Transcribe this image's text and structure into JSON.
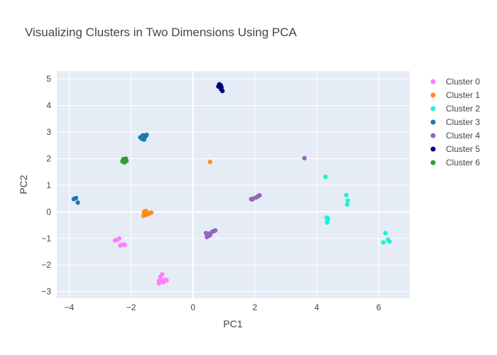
{
  "chart_data": {
    "type": "scatter",
    "title": "Visualizing Clusters in Two Dimensions Using PCA",
    "xlabel": "PC1",
    "ylabel": "PC2",
    "xlim": [
      -4.4,
      7.0
    ],
    "ylim": [
      -3.25,
      5.3
    ],
    "xticks": [
      -4,
      -2,
      0,
      2,
      4,
      6
    ],
    "yticks": [
      -3,
      -2,
      -1,
      0,
      1,
      2,
      3,
      4,
      5
    ],
    "grid": true,
    "legend_position": "right",
    "series": [
      {
        "name": "Cluster 0",
        "color": "#ff7fff",
        "points": [
          [
            -2.45,
            -1.05
          ],
          [
            -2.38,
            -1.0
          ],
          [
            -2.52,
            -1.08
          ],
          [
            -2.35,
            -1.27
          ],
          [
            -2.25,
            -1.22
          ],
          [
            -2.2,
            -1.25
          ],
          [
            -2.3,
            -1.24
          ],
          [
            -1.1,
            -2.6
          ],
          [
            -1.0,
            -2.35
          ],
          [
            -1.05,
            -2.45
          ],
          [
            -0.9,
            -2.55
          ],
          [
            -1.0,
            -2.62
          ],
          [
            -1.1,
            -2.7
          ],
          [
            -0.85,
            -2.58
          ],
          [
            -0.95,
            -2.65
          ],
          [
            -1.05,
            -2.62
          ]
        ]
      },
      {
        "name": "Cluster 1",
        "color": "#ff8c1a",
        "points": [
          [
            0.55,
            1.88
          ],
          [
            -1.58,
            0.0
          ],
          [
            -1.5,
            -0.02
          ],
          [
            -1.45,
            -0.08
          ],
          [
            -1.55,
            -0.12
          ],
          [
            -1.6,
            -0.15
          ],
          [
            -1.4,
            -0.05
          ],
          [
            -1.35,
            -0.03
          ],
          [
            -1.52,
            0.03
          ],
          [
            -1.48,
            -0.1
          ],
          [
            -1.57,
            -0.06
          ]
        ]
      },
      {
        "name": "Cluster 2",
        "color": "#1ff2d2",
        "points": [
          [
            4.28,
            1.32
          ],
          [
            4.95,
            0.63
          ],
          [
            5.0,
            0.42
          ],
          [
            4.98,
            0.28
          ],
          [
            4.32,
            -0.22
          ],
          [
            4.35,
            -0.3
          ],
          [
            4.33,
            -0.4
          ],
          [
            4.36,
            -0.25
          ],
          [
            6.22,
            -0.8
          ],
          [
            6.3,
            -1.05
          ],
          [
            6.35,
            -1.12
          ],
          [
            6.15,
            -1.15
          ]
        ]
      },
      {
        "name": "Cluster 3",
        "color": "#1f77b4",
        "points": [
          [
            -3.85,
            0.48
          ],
          [
            -3.78,
            0.52
          ],
          [
            -3.72,
            0.35
          ],
          [
            -1.7,
            2.8
          ],
          [
            -1.6,
            2.85
          ],
          [
            -1.5,
            2.9
          ],
          [
            -1.55,
            2.82
          ],
          [
            -1.65,
            2.75
          ],
          [
            -1.58,
            2.72
          ],
          [
            -1.62,
            2.88
          ],
          [
            -1.52,
            2.86
          ]
        ]
      },
      {
        "name": "Cluster 4",
        "color": "#9467bd",
        "points": [
          [
            3.6,
            2.02
          ],
          [
            1.88,
            0.48
          ],
          [
            1.95,
            0.5
          ],
          [
            2.05,
            0.55
          ],
          [
            2.12,
            0.6
          ],
          [
            2.15,
            0.62
          ],
          [
            1.92,
            0.47
          ],
          [
            2.08,
            0.57
          ],
          [
            0.42,
            -0.8
          ],
          [
            0.5,
            -0.82
          ],
          [
            0.55,
            -0.88
          ],
          [
            0.45,
            -0.95
          ],
          [
            0.62,
            -0.75
          ],
          [
            0.72,
            -0.7
          ],
          [
            0.48,
            -0.85
          ],
          [
            0.52,
            -0.9
          ],
          [
            0.68,
            -0.72
          ]
        ]
      },
      {
        "name": "Cluster 5",
        "color": "#00007f",
        "points": [
          [
            0.82,
            4.72
          ],
          [
            0.88,
            4.78
          ],
          [
            0.92,
            4.68
          ],
          [
            0.95,
            4.55
          ],
          [
            0.9,
            4.62
          ],
          [
            0.85,
            4.8
          ],
          [
            0.9,
            4.75
          ]
        ]
      },
      {
        "name": "Cluster 6",
        "color": "#2ca02c",
        "points": [
          [
            -2.25,
            1.98
          ],
          [
            -2.18,
            1.95
          ],
          [
            -2.2,
            1.88
          ],
          [
            -2.15,
            1.92
          ],
          [
            -2.28,
            1.9
          ],
          [
            -2.22,
            1.86
          ],
          [
            -2.17,
            2.0
          ]
        ]
      }
    ]
  }
}
